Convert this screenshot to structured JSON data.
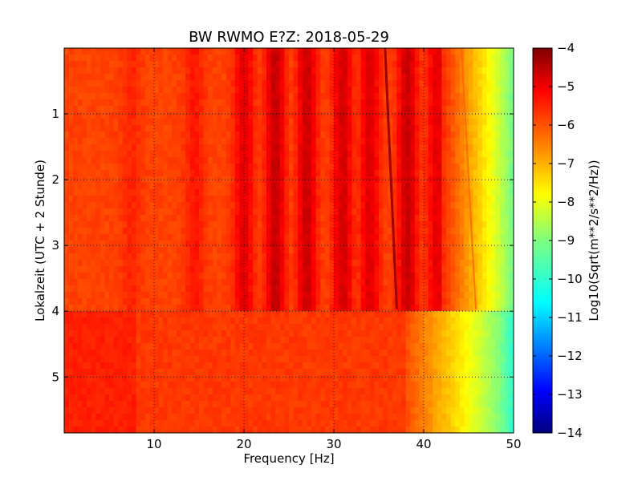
{
  "chart_data": {
    "type": "heatmap",
    "title": "BW RWMO E?Z: 2018-05-29",
    "xlabel": "Frequency [Hz]",
    "ylabel": "Lokalzeit (UTC + 2 Stunde)",
    "xlim": [
      0,
      50
    ],
    "ylim": [
      5.85,
      0
    ],
    "x_ticks": [
      "10",
      "20",
      "30",
      "40",
      "50"
    ],
    "y_ticks": [
      "1",
      "2",
      "3",
      "4",
      "5"
    ],
    "grid": true,
    "colormap": "jet",
    "colorbar": {
      "label": "Log10(Sqrt(m**2/s**2/Hz))",
      "range": [
        -14,
        -4
      ],
      "ticks": [
        "-4",
        "-5",
        "-6",
        "-7",
        "-8",
        "-9",
        "-10",
        "-11",
        "-12",
        "-13",
        "-14"
      ]
    },
    "regime_change_time": 3.97,
    "before_change": {
      "baseline_level": -5.9,
      "bright_bands_hz": [
        {
          "center": 7.5,
          "level": -5.6
        },
        {
          "center": 14.5,
          "level": -5.45
        },
        {
          "center": 20.0,
          "level": -5.0
        },
        {
          "center": 23.5,
          "level": -4.7
        },
        {
          "center": 27.0,
          "level": -4.75
        },
        {
          "center": 31.0,
          "level": -4.85
        },
        {
          "center": 34.0,
          "level": -4.95
        },
        {
          "center": 38.2,
          "level": -4.75
        },
        {
          "center": 41.5,
          "level": -5.0
        }
      ],
      "high_freq_rolloff": [
        {
          "hz": 42,
          "level": -5.6
        },
        {
          "hz": 45,
          "level": -6.8
        },
        {
          "hz": 47,
          "level": -7.6
        },
        {
          "hz": 49,
          "level": -8.6
        },
        {
          "hz": 50,
          "level": -9.2
        }
      ],
      "drifting_line": {
        "start_hz": 35.7,
        "start_time": 0,
        "end_hz": 37.0,
        "end_time": 3.97,
        "level": -4.3
      },
      "faint_line": {
        "start_hz": 44.2,
        "start_time": 0,
        "end_hz": 45.8,
        "end_time": 3.97,
        "level": -6.2
      }
    },
    "after_change": {
      "baseline_level": -5.8,
      "high_freq_rolloff": [
        {
          "hz": 38,
          "level": -6.0
        },
        {
          "hz": 42,
          "level": -7.0
        },
        {
          "hz": 45,
          "level": -7.8
        },
        {
          "hz": 48,
          "level": -8.8
        },
        {
          "hz": 50,
          "level": -9.8
        }
      ]
    }
  },
  "colors": {
    "jet_stops": [
      "#00007f",
      "#0000ff",
      "#007fff",
      "#00ffff",
      "#7fff7f",
      "#ffff00",
      "#ff7f00",
      "#ff0000",
      "#7f0000"
    ]
  }
}
